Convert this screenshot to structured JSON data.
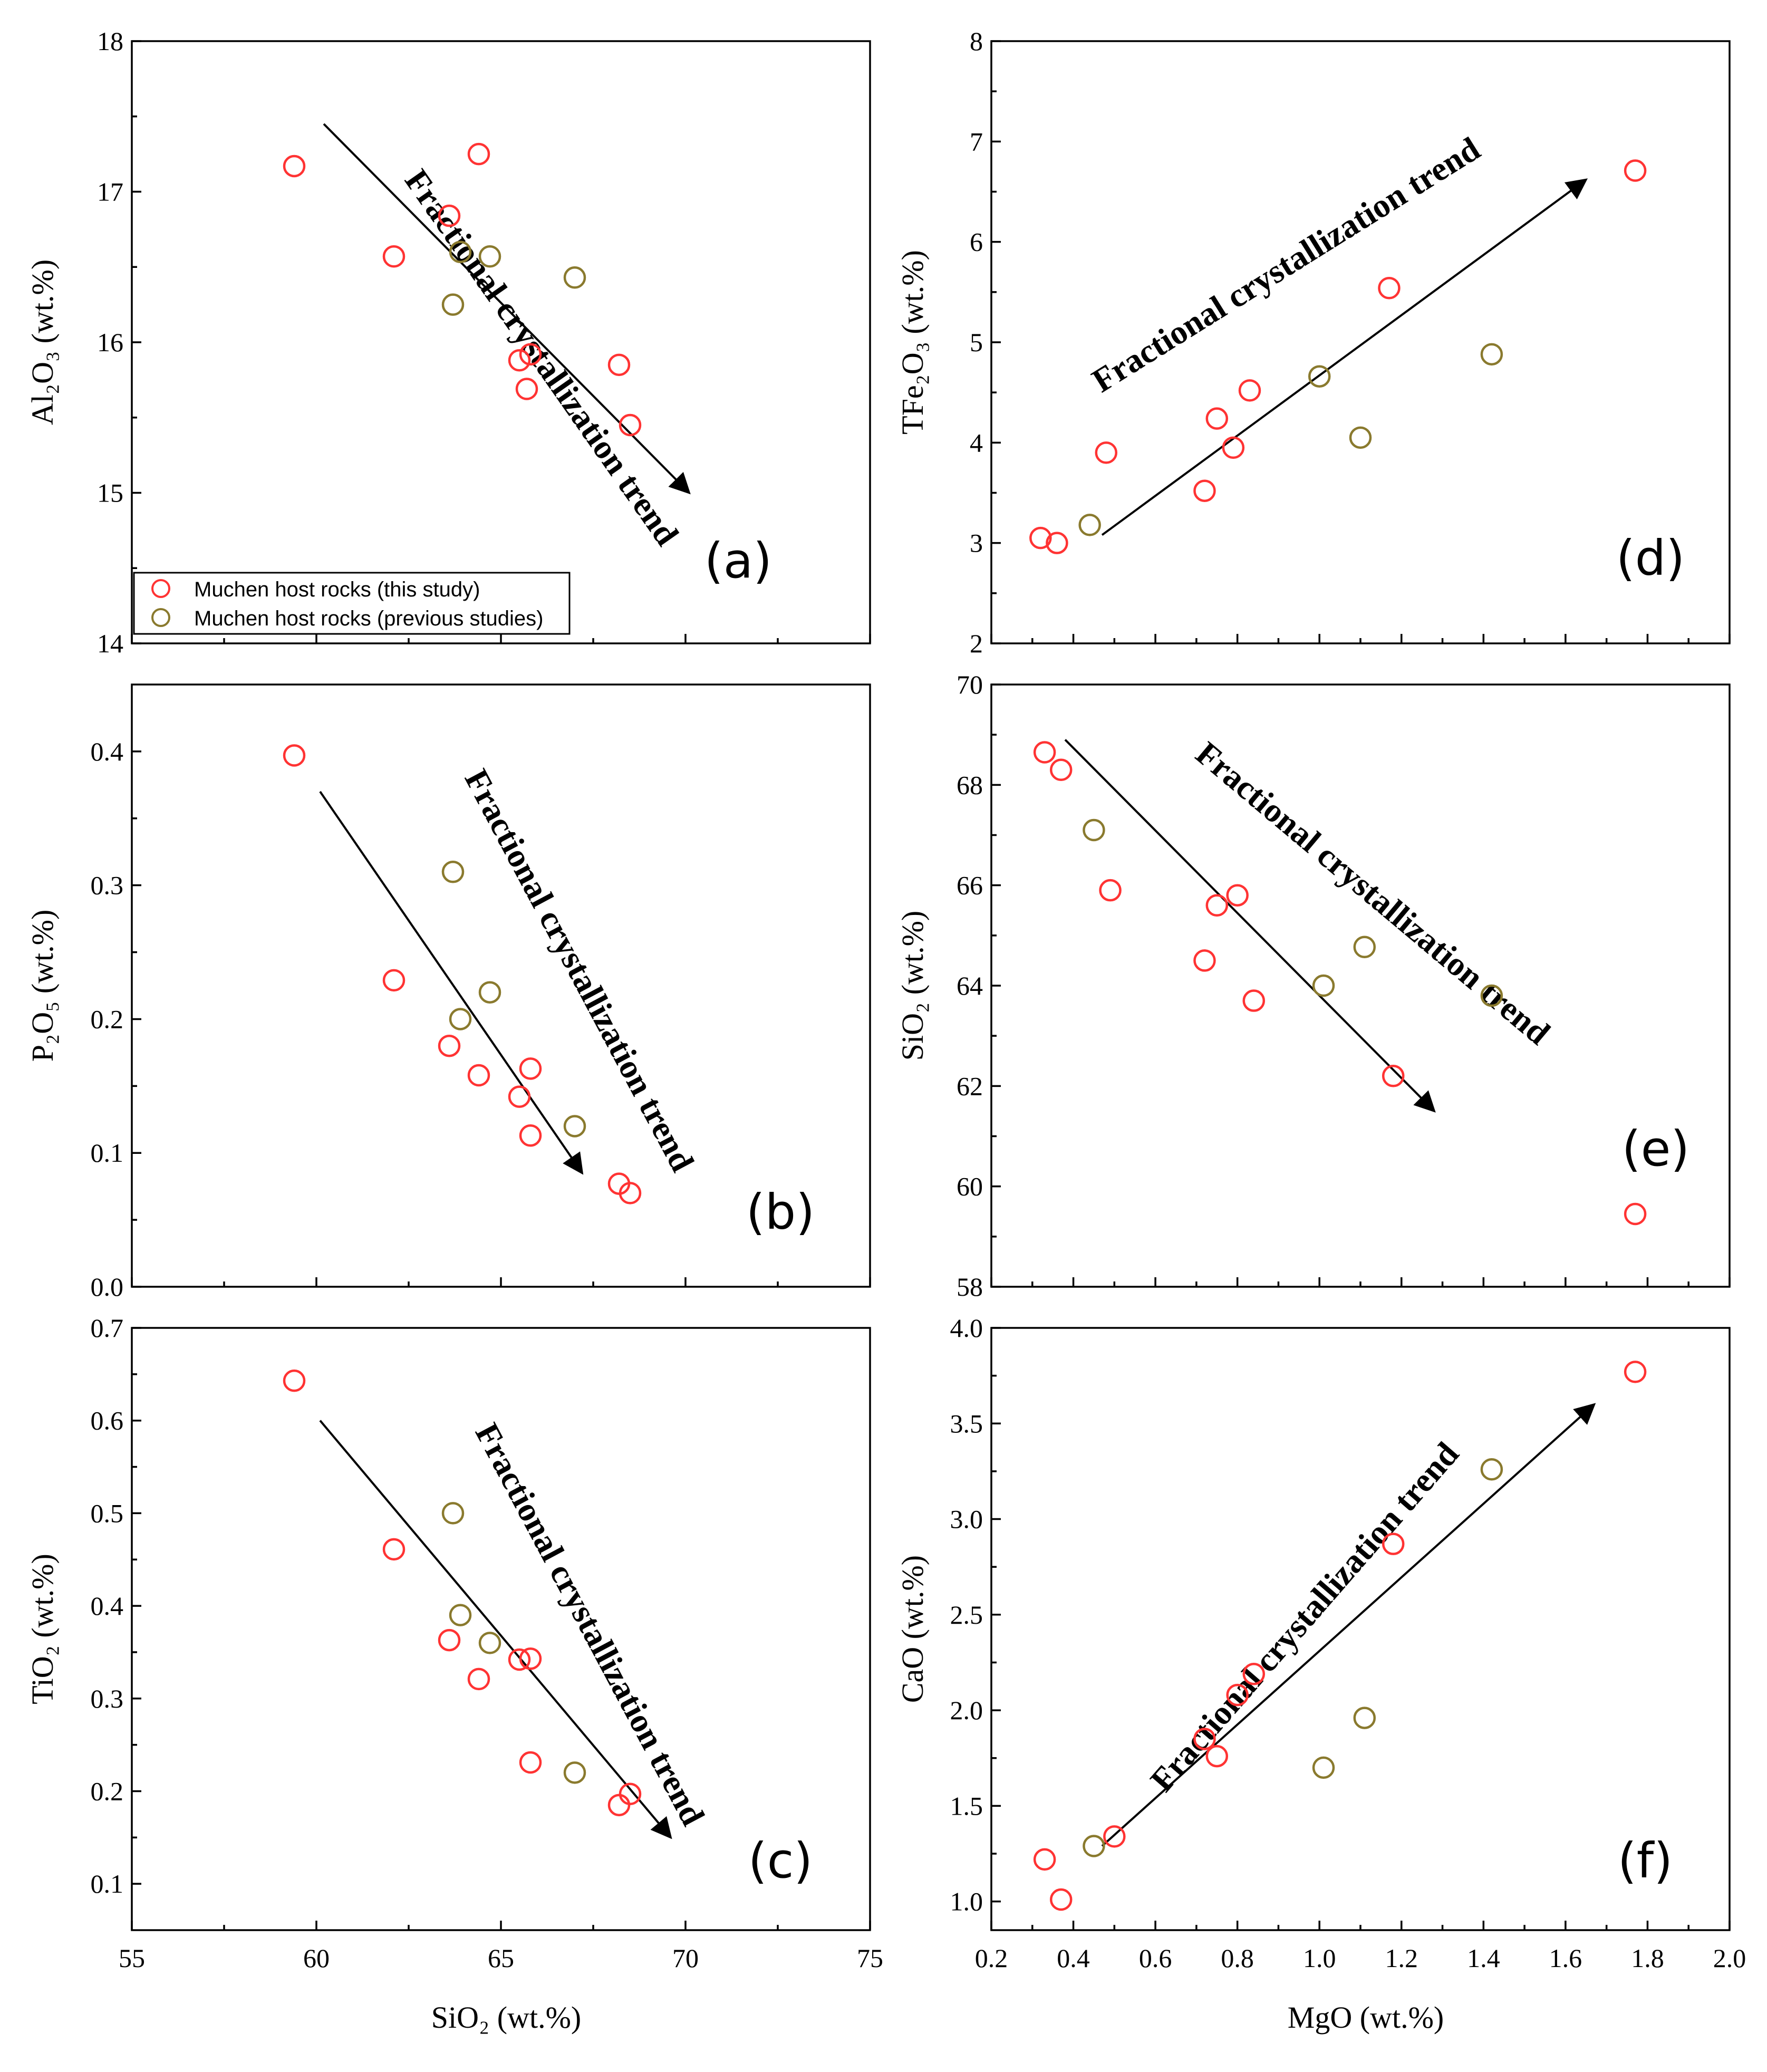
{
  "colors": {
    "this_study": "#ff3333",
    "previous": "#8a7a2e",
    "axis": "#000000"
  },
  "legend": {
    "this_study": "Muchen host rocks (this study)",
    "previous": "Muchen host rocks (previous studies)"
  },
  "chart_data": [
    {
      "id": "a",
      "type": "scatter",
      "panel_label": "(a)",
      "xlabel": "",
      "ylabel": "Al₂O₃ (wt.%)",
      "xlim": [
        55,
        75
      ],
      "ylim": [
        14,
        18
      ],
      "xticks": [],
      "yticks": [
        "14",
        "15",
        "16",
        "17",
        "18"
      ],
      "series": [
        {
          "name": "Muchen host rocks (this study)",
          "points": [
            [
              59.4,
              17.17
            ],
            [
              63.6,
              16.84
            ],
            [
              64.4,
              17.25
            ],
            [
              62.1,
              16.57
            ],
            [
              65.5,
              15.88
            ],
            [
              65.8,
              15.92
            ],
            [
              65.7,
              15.69
            ],
            [
              68.2,
              15.85
            ],
            [
              68.5,
              15.45
            ]
          ]
        },
        {
          "name": "Muchen host rocks (previous studies)",
          "points": [
            [
              63.9,
              16.6
            ],
            [
              64.7,
              16.57
            ],
            [
              67.0,
              16.43
            ],
            [
              63.7,
              16.25
            ]
          ]
        }
      ],
      "trend": {
        "text": "Fractional crystallization trend",
        "from": [
          60.2,
          17.45
        ],
        "to": [
          70.1,
          15.0
        ]
      }
    },
    {
      "id": "b",
      "type": "scatter",
      "panel_label": "(b)",
      "xlabel": "",
      "ylabel": "P₂O₅ (wt.%)",
      "xlim": [
        55,
        75
      ],
      "ylim": [
        0,
        0.45
      ],
      "xticks": [],
      "yticks": [
        "0.0",
        "0.1",
        "0.2",
        "0.3",
        "0.4"
      ],
      "series": [
        {
          "name": "Muchen host rocks (this study)",
          "points": [
            [
              59.4,
              0.397
            ],
            [
              62.1,
              0.229
            ],
            [
              63.6,
              0.18
            ],
            [
              64.4,
              0.158
            ],
            [
              65.5,
              0.142
            ],
            [
              65.8,
              0.163
            ],
            [
              65.8,
              0.113
            ],
            [
              68.2,
              0.077
            ],
            [
              68.5,
              0.07
            ]
          ]
        },
        {
          "name": "Muchen host rocks (previous studies)",
          "points": [
            [
              63.7,
              0.31
            ],
            [
              64.7,
              0.22
            ],
            [
              63.9,
              0.2
            ],
            [
              67.0,
              0.12
            ]
          ]
        }
      ],
      "trend": {
        "text": "Fractional crystallization trend",
        "from": [
          60.1,
          0.37
        ],
        "to": [
          67.2,
          0.085
        ]
      }
    },
    {
      "id": "c",
      "type": "scatter",
      "panel_label": "(c)",
      "xlabel": "SiO₂ (wt.%)",
      "ylabel": "TiO₂ (wt.%)",
      "xlim": [
        55,
        75
      ],
      "ylim": [
        0.05,
        0.7
      ],
      "xticks": [
        "55",
        "60",
        "65",
        "70",
        "75"
      ],
      "yticks": [
        "0.1",
        "0.2",
        "0.3",
        "0.4",
        "0.5",
        "0.6",
        "0.7"
      ],
      "series": [
        {
          "name": "Muchen host rocks (this study)",
          "points": [
            [
              59.4,
              0.643
            ],
            [
              62.1,
              0.461
            ],
            [
              63.6,
              0.363
            ],
            [
              64.4,
              0.321
            ],
            [
              65.5,
              0.342
            ],
            [
              65.8,
              0.343
            ],
            [
              65.8,
              0.231
            ],
            [
              68.2,
              0.185
            ],
            [
              68.5,
              0.197
            ]
          ]
        },
        {
          "name": "Muchen host rocks (previous studies)",
          "points": [
            [
              63.7,
              0.5
            ],
            [
              63.9,
              0.39
            ],
            [
              64.7,
              0.36
            ],
            [
              67.0,
              0.22
            ]
          ]
        }
      ],
      "trend": {
        "text": "Fractional crystallization trend",
        "from": [
          60.1,
          0.6
        ],
        "to": [
          69.6,
          0.15
        ]
      }
    },
    {
      "id": "d",
      "type": "scatter",
      "panel_label": "(d)",
      "xlabel": "",
      "ylabel": "TFe₂O₃ (wt.%)",
      "xlim": [
        0.2,
        2.0
      ],
      "ylim": [
        2,
        8
      ],
      "xticks": [],
      "yticks": [
        "2",
        "3",
        "4",
        "5",
        "6",
        "7",
        "8"
      ],
      "series": [
        {
          "name": "Muchen host rocks (this study)",
          "points": [
            [
              0.32,
              3.05
            ],
            [
              0.36,
              3.0
            ],
            [
              0.48,
              3.9
            ],
            [
              0.72,
              3.52
            ],
            [
              0.75,
              4.24
            ],
            [
              0.79,
              3.95
            ],
            [
              0.83,
              4.52
            ],
            [
              1.17,
              5.54
            ],
            [
              1.77,
              6.71
            ]
          ]
        },
        {
          "name": "Muchen host rocks (previous studies)",
          "points": [
            [
              0.44,
              3.18
            ],
            [
              1.0,
              4.66
            ],
            [
              1.1,
              4.05
            ],
            [
              1.42,
              4.88
            ]
          ]
        }
      ],
      "trend": {
        "text": "Fractional crystallization trend",
        "from": [
          0.47,
          3.08
        ],
        "to": [
          1.65,
          6.62
        ]
      }
    },
    {
      "id": "e",
      "type": "scatter",
      "panel_label": "(e)",
      "xlabel": "",
      "ylabel": "SiO₂ (wt.%)",
      "xlim": [
        0.2,
        2.0
      ],
      "ylim": [
        58,
        70
      ],
      "xticks": [],
      "yticks": [
        "58",
        "60",
        "62",
        "64",
        "66",
        "68",
        "70"
      ],
      "series": [
        {
          "name": "Muchen host rocks (this study)",
          "points": [
            [
              0.33,
              68.65
            ],
            [
              0.37,
              68.3
            ],
            [
              0.49,
              65.9
            ],
            [
              0.72,
              64.5
            ],
            [
              0.75,
              65.6
            ],
            [
              0.8,
              65.8
            ],
            [
              0.84,
              63.7
            ],
            [
              1.18,
              62.2
            ],
            [
              1.77,
              59.45
            ]
          ]
        },
        {
          "name": "Muchen host rocks (previous studies)",
          "points": [
            [
              0.45,
              67.1
            ],
            [
              1.01,
              64.0
            ],
            [
              1.11,
              64.77
            ],
            [
              1.42,
              63.8
            ]
          ]
        }
      ],
      "trend": {
        "text": "Fractional crystallization trend",
        "from": [
          0.38,
          68.9
        ],
        "to": [
          1.28,
          61.5
        ]
      }
    },
    {
      "id": "f",
      "type": "scatter",
      "panel_label": "(f)",
      "xlabel": "MgO (wt.%)",
      "ylabel": "CaO (wt.%)",
      "xlim": [
        0.2,
        2.0
      ],
      "ylim": [
        0.85,
        4.0
      ],
      "xticks": [
        "0.2",
        "0.4",
        "0.6",
        "0.8",
        "1.0",
        "1.2",
        "1.4",
        "1.6",
        "1.8",
        "2.0"
      ],
      "yticks": [
        "1.0",
        "1.5",
        "2.0",
        "2.5",
        "3.0",
        "3.5",
        "4.0"
      ],
      "series": [
        {
          "name": "Muchen host rocks (this study)",
          "points": [
            [
              0.33,
              1.22
            ],
            [
              0.37,
              1.01
            ],
            [
              0.5,
              1.34
            ],
            [
              0.72,
              1.85
            ],
            [
              0.75,
              1.76
            ],
            [
              0.8,
              2.08
            ],
            [
              0.84,
              2.19
            ],
            [
              1.18,
              2.87
            ],
            [
              1.77,
              3.77
            ]
          ]
        },
        {
          "name": "Muchen host rocks (previous studies)",
          "points": [
            [
              0.45,
              1.29
            ],
            [
              1.01,
              1.7
            ],
            [
              1.11,
              1.96
            ],
            [
              1.42,
              3.26
            ]
          ]
        }
      ],
      "trend": {
        "text": "Fractional crystallization trend",
        "from": [
          0.47,
          1.29
        ],
        "to": [
          1.67,
          3.6
        ]
      }
    }
  ]
}
